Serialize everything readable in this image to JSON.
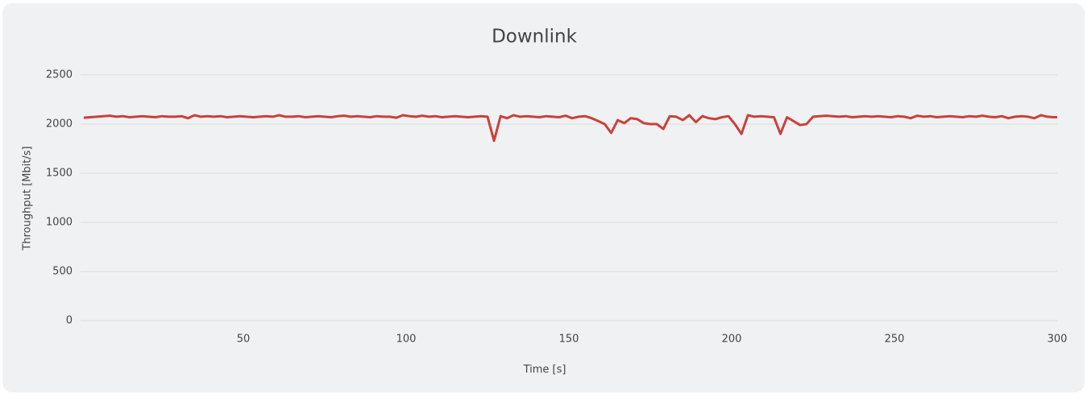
{
  "chart_data": {
    "type": "line",
    "title": "Downlink",
    "x_label": "Time [s]",
    "y_label": "Throughput [Mbit/s]",
    "x": [
      1,
      3,
      5,
      7,
      9,
      11,
      13,
      15,
      17,
      19,
      21,
      23,
      25,
      27,
      29,
      31,
      33,
      35,
      37,
      39,
      41,
      43,
      45,
      47,
      49,
      51,
      53,
      55,
      57,
      59,
      61,
      63,
      65,
      67,
      69,
      71,
      73,
      75,
      77,
      79,
      81,
      83,
      85,
      87,
      89,
      91,
      93,
      95,
      97,
      99,
      101,
      103,
      105,
      107,
      109,
      111,
      113,
      115,
      117,
      119,
      121,
      123,
      125,
      127,
      129,
      131,
      133,
      135,
      137,
      139,
      141,
      143,
      145,
      147,
      149,
      151,
      153,
      155,
      157,
      159,
      161,
      163,
      165,
      167,
      169,
      171,
      173,
      175,
      177,
      179,
      181,
      183,
      185,
      187,
      189,
      191,
      193,
      195,
      197,
      199,
      201,
      203,
      205,
      207,
      209,
      211,
      213,
      215,
      217,
      219,
      221,
      223,
      225,
      227,
      229,
      231,
      233,
      235,
      237,
      239,
      241,
      243,
      245,
      247,
      249,
      251,
      253,
      255,
      257,
      259,
      261,
      263,
      265,
      267,
      269,
      271,
      273,
      275,
      277,
      279,
      281,
      283,
      285,
      287,
      289,
      291,
      293,
      295,
      297,
      299,
      300
    ],
    "series": [
      {
        "name": "Downlink",
        "color": "#c9413b",
        "values": [
          2065,
          2070,
          2075,
          2080,
          2085,
          2075,
          2080,
          2070,
          2075,
          2080,
          2075,
          2070,
          2080,
          2075,
          2075,
          2080,
          2060,
          2090,
          2075,
          2080,
          2075,
          2080,
          2070,
          2075,
          2080,
          2075,
          2070,
          2075,
          2080,
          2075,
          2090,
          2075,
          2075,
          2080,
          2070,
          2075,
          2080,
          2075,
          2070,
          2080,
          2085,
          2075,
          2080,
          2075,
          2070,
          2080,
          2075,
          2075,
          2065,
          2090,
          2080,
          2075,
          2085,
          2075,
          2080,
          2070,
          2075,
          2080,
          2075,
          2070,
          2075,
          2080,
          2075,
          1830,
          2080,
          2060,
          2090,
          2075,
          2080,
          2075,
          2070,
          2080,
          2075,
          2070,
          2085,
          2060,
          2075,
          2080,
          2060,
          2030,
          2000,
          1910,
          2040,
          2010,
          2060,
          2050,
          2010,
          2000,
          2000,
          1950,
          2080,
          2075,
          2040,
          2090,
          2020,
          2080,
          2060,
          2050,
          2070,
          2080,
          2000,
          1900,
          2090,
          2075,
          2080,
          2075,
          2070,
          1900,
          2070,
          2030,
          1990,
          2000,
          2075,
          2080,
          2085,
          2080,
          2075,
          2080,
          2070,
          2075,
          2080,
          2075,
          2080,
          2075,
          2070,
          2080,
          2075,
          2060,
          2085,
          2075,
          2080,
          2070,
          2075,
          2080,
          2075,
          2070,
          2080,
          2075,
          2085,
          2075,
          2070,
          2080,
          2060,
          2075,
          2080,
          2075,
          2060,
          2090,
          2075,
          2070,
          2070
        ]
      }
    ],
    "xlim": [
      0,
      300
    ],
    "ylim": [
      0,
      2500
    ],
    "xticks": [
      50,
      100,
      150,
      200,
      250,
      300
    ],
    "yticks": [
      0,
      500,
      1000,
      1500,
      2000,
      2500
    ],
    "grid": true
  }
}
